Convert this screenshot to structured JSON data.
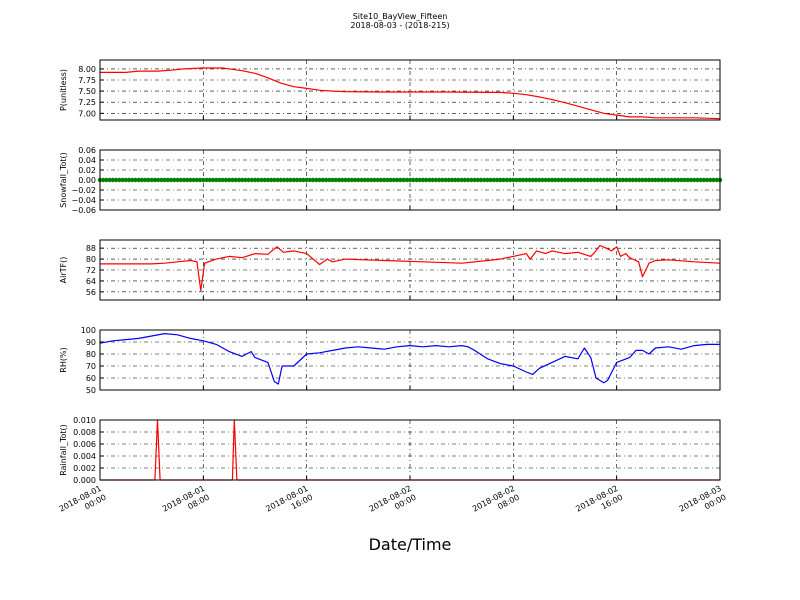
{
  "title": "Site10_BayView_Fifteen",
  "subtitle": "2018-08-03 - (2018-215)",
  "xlabel": "Date/Time",
  "x_ticks": [
    [
      "2018-08-01",
      "00:00"
    ],
    [
      "2018-08-01",
      "08:00"
    ],
    [
      "2018-08-01",
      "16:00"
    ],
    [
      "2018-08-02",
      "00:00"
    ],
    [
      "2018-08-02",
      "08:00"
    ],
    [
      "2018-08-02",
      "16:00"
    ],
    [
      "2018-08-03",
      "00:00"
    ]
  ],
  "chart_data": [
    {
      "type": "line",
      "ylabel": "P(unitless)",
      "ylim": [
        6.85,
        8.2
      ],
      "yticks": [
        "7.00",
        "7.25",
        "7.50",
        "7.75",
        "8.00"
      ],
      "grid": true,
      "x_unit": "hours since 2018-08-01 00:00",
      "xlim": [
        0,
        48
      ],
      "series": [
        {
          "color": "#ff0000",
          "points": [
            [
              0,
              7.92
            ],
            [
              2,
              7.92
            ],
            [
              3,
              7.95
            ],
            [
              4.5,
              7.95
            ],
            [
              5.5,
              7.97
            ],
            [
              6.5,
              8.0
            ],
            [
              8,
              8.02
            ],
            [
              9.5,
              8.02
            ],
            [
              10.5,
              7.98
            ],
            [
              11,
              7.96
            ],
            [
              12,
              7.9
            ],
            [
              13,
              7.8
            ],
            [
              14,
              7.68
            ],
            [
              15,
              7.6
            ],
            [
              16,
              7.56
            ],
            [
              17,
              7.52
            ],
            [
              18,
              7.5
            ],
            [
              19,
              7.49
            ],
            [
              22,
              7.48
            ],
            [
              24,
              7.48
            ],
            [
              27,
              7.48
            ],
            [
              30,
              7.47
            ],
            [
              31,
              7.47
            ],
            [
              32,
              7.45
            ],
            [
              33,
              7.42
            ],
            [
              34,
              7.37
            ],
            [
              35,
              7.31
            ],
            [
              36,
              7.24
            ],
            [
              37,
              7.16
            ],
            [
              38,
              7.08
            ],
            [
              39,
              7.0
            ],
            [
              40,
              6.96
            ],
            [
              41,
              6.92
            ],
            [
              42,
              6.92
            ],
            [
              43,
              6.9
            ],
            [
              44,
              6.9
            ],
            [
              46,
              6.9
            ],
            [
              48,
              6.88
            ]
          ]
        }
      ]
    },
    {
      "type": "scatter",
      "ylabel": "Snowfall_Tot()",
      "ylim": [
        -0.06,
        0.06
      ],
      "yticks": [
        "−0.06",
        "−0.04",
        "−0.02",
        "0.00",
        "0.02",
        "0.04",
        "0.06"
      ],
      "grid": true,
      "x_unit": "hours since 2018-08-01 00:00",
      "xlim": [
        0,
        48
      ],
      "series": [
        {
          "color": "#008000",
          "constant_value": 0,
          "x_range": [
            0,
            48
          ]
        }
      ]
    },
    {
      "type": "line",
      "ylabel": "AirTF()",
      "ylim": [
        50,
        94
      ],
      "yticks": [
        "56",
        "64",
        "72",
        "80",
        "88"
      ],
      "grid": true,
      "x_unit": "hours since 2018-08-01 00:00",
      "xlim": [
        0,
        48
      ],
      "series": [
        {
          "color": "#ff0000",
          "points": [
            [
              0,
              76.5
            ],
            [
              4,
              76.5
            ],
            [
              5,
              77
            ],
            [
              6,
              78
            ],
            [
              7,
              79
            ],
            [
              7.5,
              78
            ],
            [
              7.8,
              57
            ],
            [
              8.1,
              77
            ],
            [
              9,
              80
            ],
            [
              10,
              82
            ],
            [
              11,
              81
            ],
            [
              12,
              84
            ],
            [
              13,
              83.5
            ],
            [
              13.3,
              86
            ],
            [
              13.7,
              89
            ],
            [
              14.2,
              85
            ],
            [
              15,
              86
            ],
            [
              16,
              84
            ],
            [
              17,
              76
            ],
            [
              17.6,
              80
            ],
            [
              18,
              78
            ],
            [
              19,
              80
            ],
            [
              22,
              79
            ],
            [
              25,
              78
            ],
            [
              28,
              77
            ],
            [
              30,
              79
            ],
            [
              31,
              80
            ],
            [
              32,
              82
            ],
            [
              33,
              84
            ],
            [
              33.3,
              80
            ],
            [
              33.8,
              86
            ],
            [
              34.5,
              84
            ],
            [
              35,
              86
            ],
            [
              36,
              84
            ],
            [
              37,
              85
            ],
            [
              38,
              82
            ],
            [
              38.3,
              85
            ],
            [
              38.7,
              90
            ],
            [
              39.2,
              88
            ],
            [
              39.6,
              86
            ],
            [
              40,
              89
            ],
            [
              40.3,
              82
            ],
            [
              40.7,
              84
            ],
            [
              41,
              81
            ],
            [
              41.7,
              78
            ],
            [
              42,
              67
            ],
            [
              42.5,
              77
            ],
            [
              43,
              79
            ],
            [
              44,
              79.5
            ],
            [
              46,
              78
            ],
            [
              48,
              77
            ]
          ]
        }
      ]
    },
    {
      "type": "line",
      "ylabel": "RH(%)",
      "ylim": [
        50,
        100
      ],
      "yticks": [
        "50",
        "60",
        "70",
        "80",
        "90",
        "100"
      ],
      "grid": true,
      "x_unit": "hours since 2018-08-01 00:00",
      "xlim": [
        0,
        48
      ],
      "series": [
        {
          "color": "#0000ff",
          "points": [
            [
              0,
              89
            ],
            [
              1,
              91
            ],
            [
              2,
              92
            ],
            [
              3,
              93
            ],
            [
              4,
              95
            ],
            [
              5,
              97
            ],
            [
              6,
              96
            ],
            [
              7,
              93
            ],
            [
              8,
              91
            ],
            [
              9,
              88
            ],
            [
              10,
              82
            ],
            [
              11,
              78
            ],
            [
              11.7,
              82
            ],
            [
              12,
              77
            ],
            [
              13,
              73
            ],
            [
              13.5,
              57
            ],
            [
              13.8,
              55
            ],
            [
              14.1,
              70
            ],
            [
              15,
              70
            ],
            [
              16,
              80
            ],
            [
              17,
              81
            ],
            [
              18,
              83
            ],
            [
              19,
              85
            ],
            [
              20,
              86
            ],
            [
              21,
              85
            ],
            [
              22,
              84
            ],
            [
              23,
              86
            ],
            [
              24,
              87
            ],
            [
              25,
              86
            ],
            [
              26,
              87
            ],
            [
              27,
              86
            ],
            [
              28,
              87
            ],
            [
              28.5,
              86
            ],
            [
              29,
              83
            ],
            [
              30,
              76
            ],
            [
              31,
              72
            ],
            [
              32,
              70
            ],
            [
              33,
              65
            ],
            [
              33.5,
              63
            ],
            [
              34,
              68
            ],
            [
              35,
              73
            ],
            [
              36,
              78
            ],
            [
              37,
              76
            ],
            [
              37.5,
              85
            ],
            [
              38,
              77
            ],
            [
              38.4,
              60
            ],
            [
              39,
              56
            ],
            [
              39.3,
              58
            ],
            [
              40,
              73
            ],
            [
              41,
              77
            ],
            [
              41.5,
              83
            ],
            [
              42,
              83
            ],
            [
              42.5,
              80
            ],
            [
              43,
              85
            ],
            [
              44,
              86
            ],
            [
              45,
              84
            ],
            [
              46,
              87
            ],
            [
              47,
              88
            ],
            [
              48,
              88
            ]
          ]
        }
      ]
    },
    {
      "type": "line",
      "ylabel": "Rainfall_Tot()",
      "ylim": [
        0,
        0.01
      ],
      "yticks": [
        "0.000",
        "0.002",
        "0.004",
        "0.006",
        "0.008",
        "0.010"
      ],
      "grid": true,
      "x_unit": "hours since 2018-08-01 00:00",
      "xlim": [
        0,
        48
      ],
      "series": [
        {
          "color": "#ff0000",
          "points": [
            [
              0,
              0
            ],
            [
              4.25,
              0
            ],
            [
              4.45,
              0.01
            ],
            [
              4.65,
              0
            ],
            [
              10.25,
              0
            ],
            [
              10.4,
              0.01
            ],
            [
              10.6,
              0
            ],
            [
              48,
              0
            ]
          ]
        }
      ]
    }
  ],
  "panel_names": [
    "ph",
    "snowfall",
    "airtemp",
    "rh",
    "rainfall"
  ]
}
